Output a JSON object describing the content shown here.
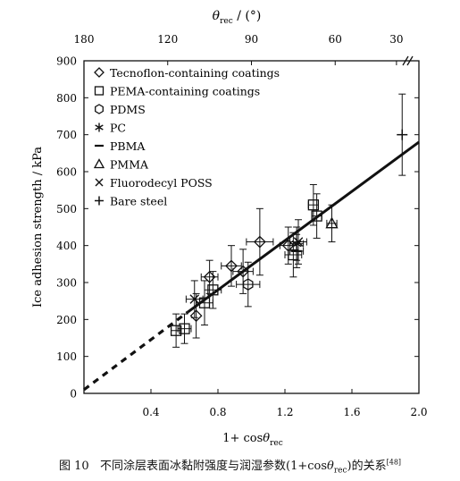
{
  "chart_data": {
    "type": "scatter",
    "x_axis": {
      "label_prefix": "1+ cos",
      "label_theta": "θ",
      "label_sub": "rec",
      "xlim": [
        0.0,
        2.0
      ],
      "ticks": [
        0.4,
        0.8,
        1.2,
        1.6,
        2.0
      ],
      "tick_labels": [
        "0.4",
        "0.8",
        "1.2",
        "1.6",
        "2.0"
      ]
    },
    "x_top_axis": {
      "label_theta": "θ",
      "label_sub": "rec",
      "label_suffix": " / (°)",
      "ticks": [
        180,
        120,
        90,
        60,
        30
      ],
      "tick_labels": [
        "180",
        "120",
        "90",
        "60",
        "30"
      ]
    },
    "y_axis": {
      "label": "Ice adhesion strength / kPa",
      "ylim": [
        0,
        900
      ],
      "ticks": [
        0,
        100,
        200,
        300,
        400,
        500,
        600,
        700,
        800,
        900
      ],
      "tick_labels": [
        "0",
        "100",
        "200",
        "300",
        "400",
        "500",
        "600",
        "700",
        "800",
        "900"
      ]
    },
    "legend": {
      "position": "top-left",
      "entries": [
        {
          "marker": "diamond",
          "label": "Tecnoflon-containing coatings"
        },
        {
          "marker": "square",
          "label": "PEMA-containing coatings"
        },
        {
          "marker": "hexagon",
          "label": "PDMS"
        },
        {
          "marker": "asterisk",
          "label": "PC"
        },
        {
          "marker": "dash",
          "label": "PBMA"
        },
        {
          "marker": "triangle",
          "label": "PMMA"
        },
        {
          "marker": "cross",
          "label": "Fluorodecyl POSS"
        },
        {
          "marker": "plus",
          "label": "Bare steel"
        }
      ]
    },
    "series": [
      {
        "marker": "diamond",
        "points": [
          {
            "x": 0.67,
            "y": 210,
            "err_y": 60
          },
          {
            "x": 0.75,
            "y": 315,
            "err_y": 45,
            "err_x": 0.05
          },
          {
            "x": 0.88,
            "y": 345,
            "err_y": 55,
            "err_x": 0.06
          },
          {
            "x": 0.95,
            "y": 330,
            "err_y": 60,
            "err_x": 0.06
          },
          {
            "x": 1.05,
            "y": 410,
            "err_y": 90,
            "err_x": 0.08
          },
          {
            "x": 1.22,
            "y": 400,
            "err_y": 50,
            "err_x": 0.05
          }
        ]
      },
      {
        "marker": "square",
        "points": [
          {
            "x": 0.55,
            "y": 170,
            "err_y": 45,
            "err_x": 0.03
          },
          {
            "x": 0.6,
            "y": 175,
            "err_y": 40,
            "err_x": 0.04
          },
          {
            "x": 0.72,
            "y": 245,
            "err_y": 60,
            "err_x": 0.05
          },
          {
            "x": 0.77,
            "y": 280,
            "err_y": 50,
            "err_x": 0.05
          },
          {
            "x": 1.25,
            "y": 375,
            "err_y": 60,
            "err_x": 0.05
          },
          {
            "x": 1.37,
            "y": 510,
            "err_y": 55,
            "err_x": 0.03
          },
          {
            "x": 1.39,
            "y": 480,
            "err_y": 60,
            "err_x": 0.03
          }
        ]
      },
      {
        "marker": "hexagon",
        "points": [
          {
            "x": 0.98,
            "y": 295,
            "err_y": 60,
            "err_x": 0.07
          }
        ]
      },
      {
        "marker": "asterisk",
        "points": [
          {
            "x": 1.27,
            "y": 405,
            "err_y": 45,
            "err_x": 0.04
          }
        ]
      },
      {
        "marker": "dash",
        "points": [
          {
            "x": 1.27,
            "y": 385,
            "err_y": 45,
            "err_x": 0.04
          }
        ]
      },
      {
        "marker": "triangle",
        "points": [
          {
            "x": 1.48,
            "y": 460,
            "err_y": 50,
            "err_x": 0.03
          }
        ]
      },
      {
        "marker": "cross",
        "points": [
          {
            "x": 0.66,
            "y": 255,
            "err_y": 50,
            "err_x": 0.05
          },
          {
            "x": 1.28,
            "y": 410,
            "err_y": 60,
            "err_x": 0.05
          }
        ]
      },
      {
        "marker": "plus",
        "points": [
          {
            "x": 1.9,
            "y": 700,
            "err_y": 110
          }
        ]
      }
    ],
    "fit_line": {
      "solid": [
        [
          0.62,
          220
        ],
        [
          2.0,
          680
        ]
      ],
      "dashed": [
        [
          0.0,
          10
        ],
        [
          0.62,
          220
        ]
      ]
    }
  },
  "caption": {
    "figure_label": "图 10",
    "text_before": "不同涂层表面冰黏附强度与润湿参数(1+cos",
    "theta": "θ",
    "sub": "rec",
    "text_after": ")的关系",
    "ref": "[48]"
  }
}
